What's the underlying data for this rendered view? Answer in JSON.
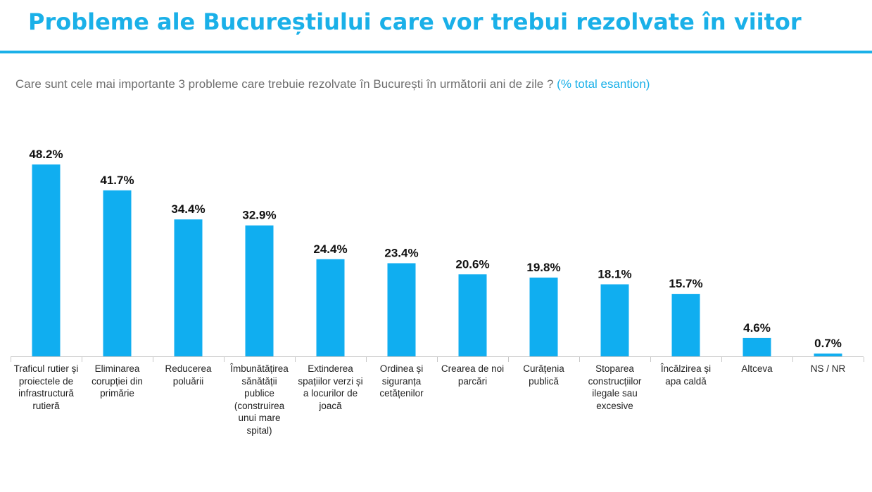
{
  "header": {
    "title": "Probleme ale Bucureștiului care vor trebui rezolvate în viitor",
    "question": "Care sunt cele mai importante 3 probleme care trebuie rezolvate în București în următorii ani de zile ?",
    "unit_note": "(% total esantion)"
  },
  "colors": {
    "accent": "#1ab0e8",
    "bar": "#10aef0"
  },
  "chart_data": {
    "type": "bar",
    "title": "",
    "xlabel": "",
    "ylabel": "",
    "ylim": [
      0,
      48.2
    ],
    "grid": false,
    "categories": [
      "Traficul rutier și proiectele de infrastructură rutieră",
      "Eliminarea corupției din primărie",
      "Reducerea poluării",
      "Îmbunătățirea sănătății publice (construirea unui mare spital)",
      "Extinderea spațiilor verzi și a locurilor de joacă",
      "Ordinea și siguranța cetățenilor",
      "Crearea de noi parcări",
      "Curățenia publică",
      "Stoparea construcțiilor ilegale sau excesive",
      "Încălzirea și apa caldă",
      "Altceva",
      "NS / NR"
    ],
    "values": [
      48.2,
      41.7,
      34.4,
      32.9,
      24.4,
      23.4,
      20.6,
      19.8,
      18.1,
      15.7,
      4.6,
      0.7
    ],
    "value_labels": [
      "48.2%",
      "41.7%",
      "34.4%",
      "32.9%",
      "24.4%",
      "23.4%",
      "20.6%",
      "19.8%",
      "18.1%",
      "15.7%",
      "4.6%",
      "0.7%"
    ]
  }
}
